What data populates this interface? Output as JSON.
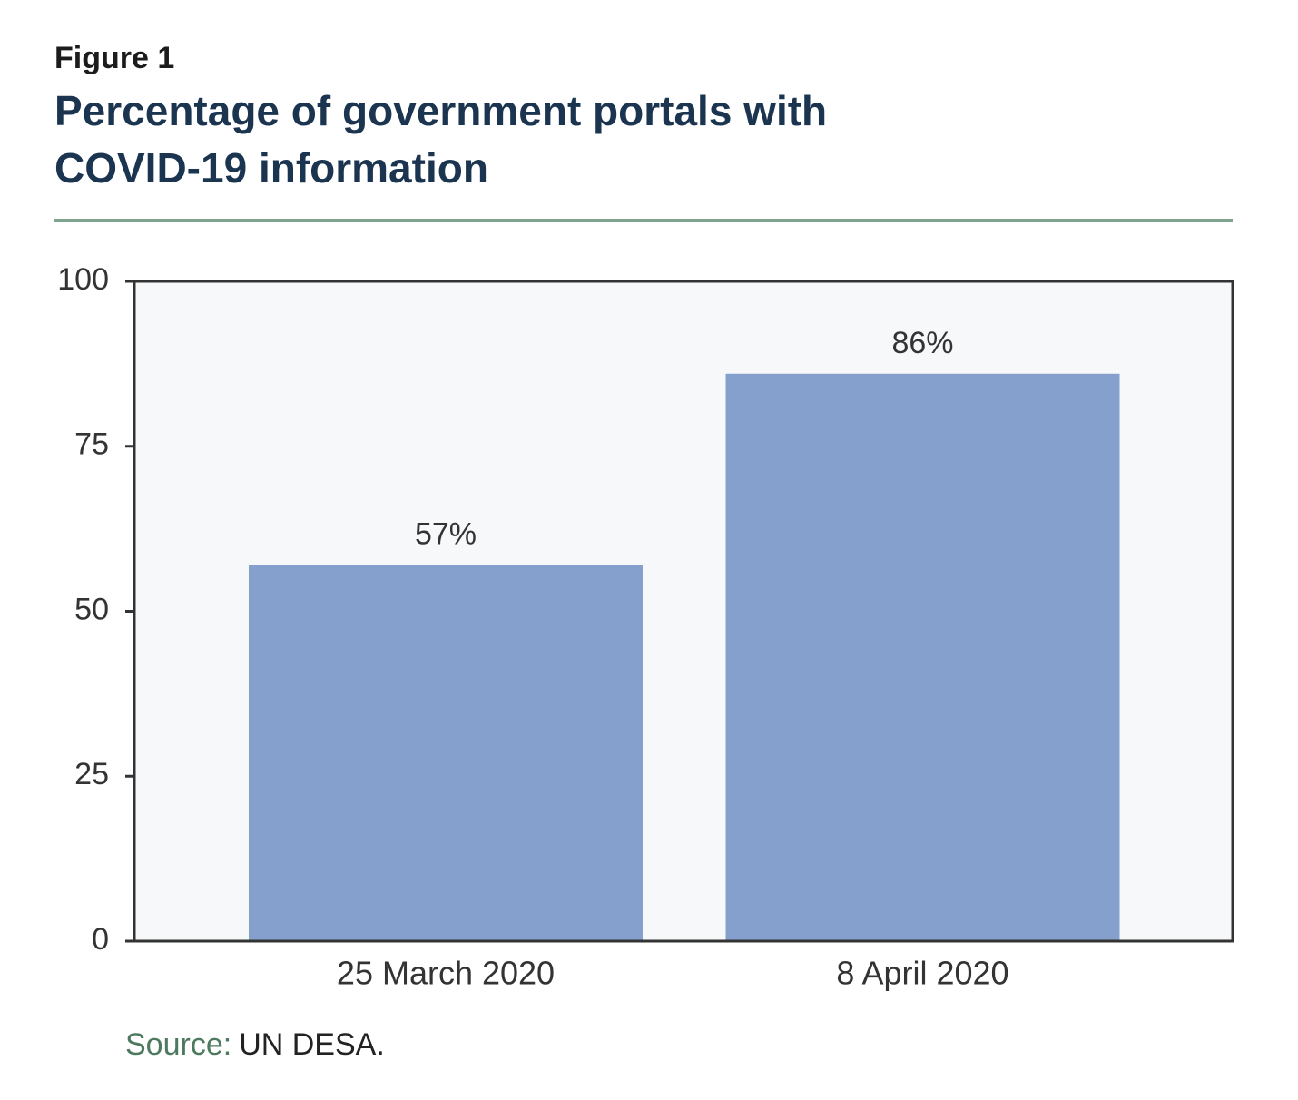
{
  "figure_label": "Figure 1",
  "chart_data": {
    "type": "bar",
    "title": [
      "Percentage of government portals with",
      "COVID-19 information"
    ],
    "categories": [
      "25 March 2020",
      "8 April 2020"
    ],
    "values": [
      57,
      86
    ],
    "value_labels": [
      "57%",
      "86%"
    ],
    "color": "#86a0ce",
    "ylim": [
      0,
      100
    ],
    "yticks": [
      0,
      25,
      50,
      75,
      100
    ]
  },
  "source": {
    "label": "Source:",
    "text": "UN DESA."
  }
}
